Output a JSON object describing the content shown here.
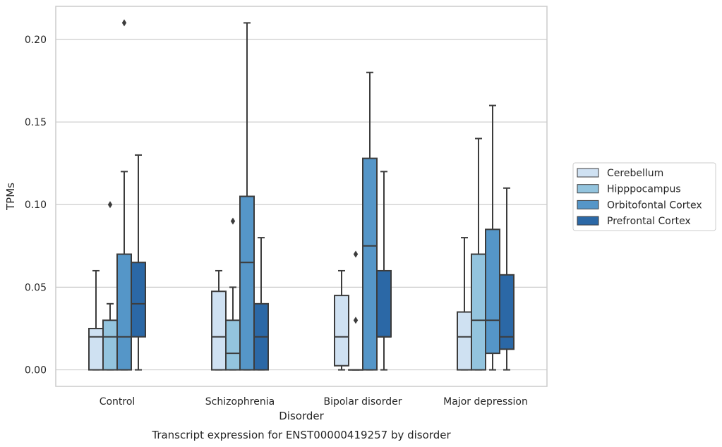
{
  "chart_data": {
    "type": "boxplot",
    "title": "Transcript expression for ENST00000419257 by disorder",
    "xlabel": "Disorder",
    "ylabel": "TPMs",
    "ylim": [
      -0.01,
      0.22
    ],
    "yticks": [
      "0.00",
      "0.05",
      "0.10",
      "0.15",
      "0.20"
    ],
    "ytick_values": [
      0.0,
      0.05,
      0.1,
      0.15,
      0.2
    ],
    "grid": "horizontal",
    "legend_position": "right",
    "categories": [
      "Control",
      "Schizophrenia",
      "Bipolar disorder",
      "Major depression"
    ],
    "series": [
      {
        "name": "Cerebellum",
        "color": "#cfe1f2",
        "boxes": [
          {
            "q1": 0.0,
            "median": 0.02,
            "q3": 0.025,
            "whislo": 0.0,
            "whishi": 0.06,
            "fliers": []
          },
          {
            "q1": 0.0,
            "median": 0.02,
            "q3": 0.0475,
            "whislo": 0.0,
            "whishi": 0.06,
            "fliers": []
          },
          {
            "q1": 0.0025,
            "median": 0.02,
            "q3": 0.045,
            "whislo": 0.0,
            "whishi": 0.06,
            "fliers": []
          },
          {
            "q1": 0.0,
            "median": 0.02,
            "q3": 0.035,
            "whislo": 0.0,
            "whishi": 0.08,
            "fliers": []
          }
        ]
      },
      {
        "name": "Hipppocampus",
        "color": "#93c4de",
        "boxes": [
          {
            "q1": 0.0,
            "median": 0.02,
            "q3": 0.03,
            "whislo": 0.0,
            "whishi": 0.04,
            "fliers": [
              0.1
            ]
          },
          {
            "q1": 0.0,
            "median": 0.01,
            "q3": 0.03,
            "whislo": 0.0,
            "whishi": 0.05,
            "fliers": [
              0.09
            ]
          },
          {
            "q1": 0.0,
            "median": 0.0,
            "q3": 0.0,
            "whislo": 0.0,
            "whishi": 0.0,
            "fliers": [
              0.07,
              0.03
            ]
          },
          {
            "q1": 0.0,
            "median": 0.03,
            "q3": 0.07,
            "whislo": 0.0,
            "whishi": 0.14,
            "fliers": []
          }
        ]
      },
      {
        "name": "Orbitofontal Cortex",
        "color": "#5596c8",
        "boxes": [
          {
            "q1": 0.0,
            "median": 0.02,
            "q3": 0.07,
            "whislo": 0.0,
            "whishi": 0.12,
            "fliers": [
              0.21
            ]
          },
          {
            "q1": 0.0,
            "median": 0.065,
            "q3": 0.105,
            "whislo": 0.0,
            "whishi": 0.21,
            "fliers": []
          },
          {
            "q1": 0.0,
            "median": 0.075,
            "q3": 0.128,
            "whislo": 0.0,
            "whishi": 0.18,
            "fliers": []
          },
          {
            "q1": 0.01,
            "median": 0.03,
            "q3": 0.085,
            "whislo": 0.0,
            "whishi": 0.16,
            "fliers": []
          }
        ]
      },
      {
        "name": "Prefrontal Cortex",
        "color": "#2b68a6",
        "boxes": [
          {
            "q1": 0.02,
            "median": 0.04,
            "q3": 0.065,
            "whislo": 0.0,
            "whishi": 0.13,
            "fliers": []
          },
          {
            "q1": 0.0,
            "median": 0.02,
            "q3": 0.04,
            "whislo": 0.0,
            "whishi": 0.08,
            "fliers": []
          },
          {
            "q1": 0.02,
            "median": 0.02,
            "q3": 0.06,
            "whislo": 0.0,
            "whishi": 0.12,
            "fliers": []
          },
          {
            "q1": 0.0125,
            "median": 0.02,
            "q3": 0.0575,
            "whislo": 0.0,
            "whishi": 0.11,
            "fliers": []
          }
        ]
      }
    ]
  }
}
